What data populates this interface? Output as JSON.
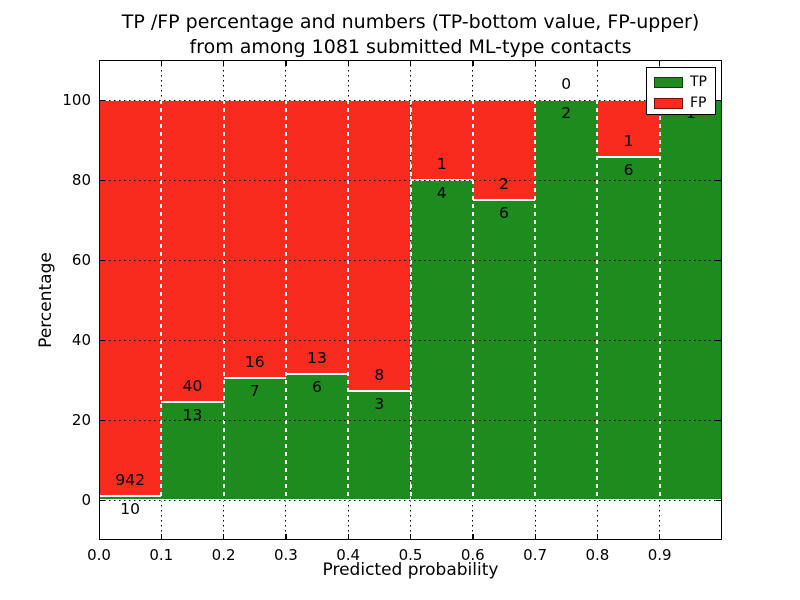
{
  "figure": {
    "title_line1": "TP /FP percentage and numbers (TP-bottom value, FP-upper)",
    "title_line2": "from among 1081 submitted ML-type contacts"
  },
  "chart_data": {
    "type": "bar",
    "subtype": "stacked-percentage-histogram",
    "title": "TP /FP percentage and numbers (TP-bottom value, FP-upper)\nfrom among 1081 submitted ML-type contacts",
    "xlabel": "Predicted probability",
    "ylabel": "Percentage",
    "total_contacts": 1081,
    "bin_edges": [
      0.0,
      0.1,
      0.2,
      0.3,
      0.4,
      0.5,
      0.6,
      0.7,
      0.8,
      0.9,
      1.0
    ],
    "x_tick_labels": [
      "0.0",
      "0.1",
      "0.2",
      "0.3",
      "0.4",
      "0.5",
      "0.6",
      "0.7",
      "0.8",
      "0.9"
    ],
    "y_ticks": [
      0,
      20,
      40,
      60,
      80,
      100
    ],
    "ylim": [
      -10,
      110
    ],
    "grid": true,
    "series": [
      {
        "name": "TP",
        "color": "#1e8b1e",
        "counts": [
          10,
          13,
          7,
          6,
          3,
          4,
          6,
          2,
          6,
          1
        ]
      },
      {
        "name": "FP",
        "color": "#f92a1e",
        "counts": [
          942,
          40,
          16,
          13,
          8,
          1,
          2,
          0,
          1,
          0
        ]
      }
    ],
    "tp_percent_heights": [
      1.05,
      24.53,
      30.43,
      31.58,
      27.27,
      80.0,
      75.0,
      100.0,
      85.71,
      100.0
    ],
    "legend": {
      "position": "upper right",
      "entries": [
        "TP",
        "FP"
      ]
    }
  },
  "colors": {
    "tp_green": "#1e8b1e",
    "fp_red": "#f92a1e",
    "grid": "#000000",
    "background": "#ffffff"
  }
}
